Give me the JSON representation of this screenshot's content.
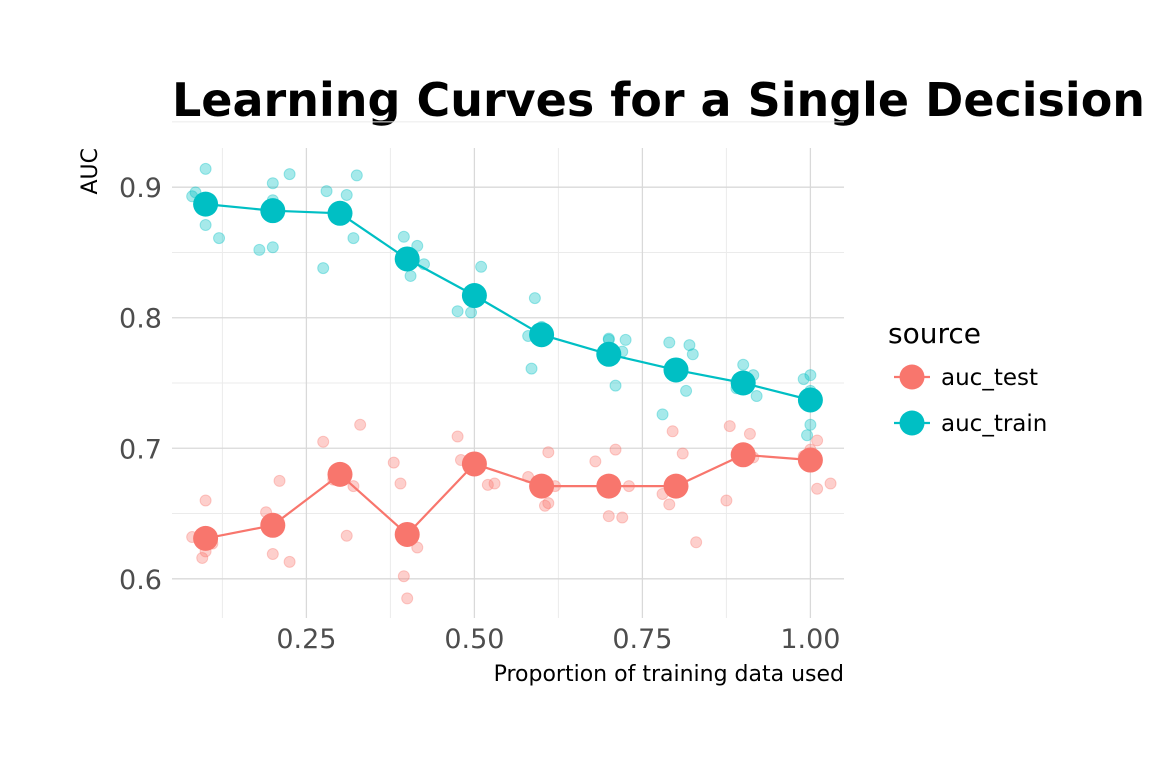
{
  "chart_data": {
    "type": "line",
    "title": "Learning Curves for a Single Decision Tree",
    "xlabel": "Proportion of training data used",
    "ylabel": "AUC",
    "xlim": [
      0.05,
      1.05
    ],
    "ylim": [
      0.57,
      0.93
    ],
    "x_ticks": [
      0.25,
      0.5,
      0.75,
      1.0
    ],
    "x_tick_labels": [
      "0.25",
      "0.50",
      "0.75",
      "1.00"
    ],
    "y_ticks": [
      0.6,
      0.7,
      0.8,
      0.9
    ],
    "y_tick_labels": [
      "0.6",
      "0.7",
      "0.8",
      "0.9"
    ],
    "grid": true,
    "legend": {
      "title": "source",
      "position": "right"
    },
    "x": [
      0.1,
      0.2,
      0.3,
      0.4,
      0.5,
      0.6,
      0.7,
      0.8,
      0.9,
      1.0
    ],
    "series": [
      {
        "name": "auc_test",
        "color": "#F8766D",
        "values": [
          0.631,
          0.641,
          0.68,
          0.634,
          0.688,
          0.671,
          0.671,
          0.671,
          0.695,
          0.691
        ],
        "points": [
          [
            0.08,
            0.632
          ],
          [
            0.095,
            0.616
          ],
          [
            0.1,
            0.621
          ],
          [
            0.1,
            0.66
          ],
          [
            0.11,
            0.627
          ],
          [
            0.19,
            0.651
          ],
          [
            0.2,
            0.645
          ],
          [
            0.2,
            0.619
          ],
          [
            0.21,
            0.675
          ],
          [
            0.225,
            0.613
          ],
          [
            0.275,
            0.705
          ],
          [
            0.29,
            0.676
          ],
          [
            0.31,
            0.633
          ],
          [
            0.32,
            0.671
          ],
          [
            0.33,
            0.718
          ],
          [
            0.38,
            0.689
          ],
          [
            0.39,
            0.673
          ],
          [
            0.395,
            0.602
          ],
          [
            0.4,
            0.585
          ],
          [
            0.415,
            0.624
          ],
          [
            0.475,
            0.709
          ],
          [
            0.48,
            0.691
          ],
          [
            0.5,
            0.69
          ],
          [
            0.52,
            0.672
          ],
          [
            0.53,
            0.673
          ],
          [
            0.58,
            0.678
          ],
          [
            0.605,
            0.656
          ],
          [
            0.61,
            0.697
          ],
          [
            0.61,
            0.658
          ],
          [
            0.62,
            0.671
          ],
          [
            0.68,
            0.69
          ],
          [
            0.7,
            0.648
          ],
          [
            0.71,
            0.699
          ],
          [
            0.72,
            0.647
          ],
          [
            0.73,
            0.671
          ],
          [
            0.78,
            0.665
          ],
          [
            0.79,
            0.657
          ],
          [
            0.795,
            0.713
          ],
          [
            0.81,
            0.696
          ],
          [
            0.83,
            0.628
          ],
          [
            0.875,
            0.66
          ],
          [
            0.88,
            0.717
          ],
          [
            0.9,
            0.697
          ],
          [
            0.91,
            0.711
          ],
          [
            0.915,
            0.693
          ],
          [
            0.99,
            0.694
          ],
          [
            1.0,
            0.699
          ],
          [
            1.01,
            0.706
          ],
          [
            1.01,
            0.669
          ],
          [
            1.03,
            0.673
          ]
        ]
      },
      {
        "name": "auc_train",
        "color": "#00BFC4",
        "values": [
          0.887,
          0.882,
          0.88,
          0.845,
          0.817,
          0.787,
          0.772,
          0.76,
          0.75,
          0.737
        ],
        "points": [
          [
            0.08,
            0.893
          ],
          [
            0.085,
            0.896
          ],
          [
            0.1,
            0.914
          ],
          [
            0.1,
            0.871
          ],
          [
            0.12,
            0.861
          ],
          [
            0.18,
            0.852
          ],
          [
            0.2,
            0.89
          ],
          [
            0.2,
            0.903
          ],
          [
            0.2,
            0.854
          ],
          [
            0.225,
            0.91
          ],
          [
            0.275,
            0.838
          ],
          [
            0.28,
            0.897
          ],
          [
            0.3,
            0.88
          ],
          [
            0.31,
            0.894
          ],
          [
            0.32,
            0.861
          ],
          [
            0.325,
            0.909
          ],
          [
            0.395,
            0.862
          ],
          [
            0.4,
            0.848
          ],
          [
            0.405,
            0.832
          ],
          [
            0.415,
            0.855
          ],
          [
            0.425,
            0.841
          ],
          [
            0.475,
            0.805
          ],
          [
            0.495,
            0.804
          ],
          [
            0.5,
            0.817
          ],
          [
            0.51,
            0.839
          ],
          [
            0.58,
            0.786
          ],
          [
            0.585,
            0.761
          ],
          [
            0.59,
            0.815
          ],
          [
            0.6,
            0.793
          ],
          [
            0.7,
            0.783
          ],
          [
            0.7,
            0.784
          ],
          [
            0.71,
            0.748
          ],
          [
            0.72,
            0.774
          ],
          [
            0.725,
            0.783
          ],
          [
            0.78,
            0.726
          ],
          [
            0.79,
            0.781
          ],
          [
            0.805,
            0.759
          ],
          [
            0.815,
            0.744
          ],
          [
            0.82,
            0.779
          ],
          [
            0.825,
            0.772
          ],
          [
            0.89,
            0.746
          ],
          [
            0.9,
            0.764
          ],
          [
            0.9,
            0.746
          ],
          [
            0.915,
            0.756
          ],
          [
            0.92,
            0.74
          ],
          [
            0.99,
            0.753
          ],
          [
            0.995,
            0.71
          ],
          [
            1.0,
            0.756
          ],
          [
            1.0,
            0.718
          ],
          [
            1.0,
            0.744
          ]
        ]
      }
    ]
  }
}
